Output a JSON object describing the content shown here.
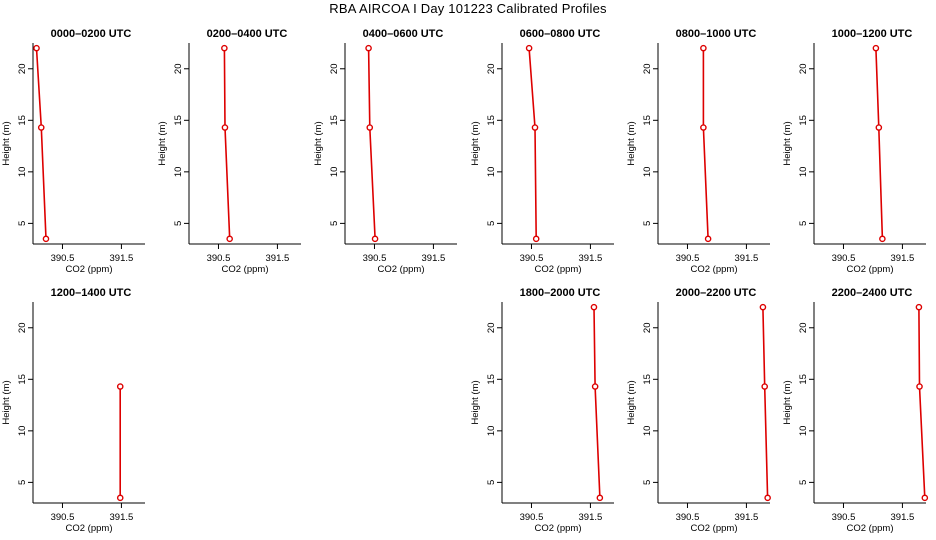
{
  "title": "RBA AIRCOA I  Day 101223  Calibrated Profiles",
  "colors": {
    "line": "#dd0000",
    "axis": "#000000",
    "background": "#ffffff"
  },
  "chart_data": [
    {
      "type": "line",
      "title": "0000–0200 UTC",
      "xlabel": "CO2 (ppm)",
      "ylabel": "Height (m)",
      "xlim": [
        390.0,
        391.9
      ],
      "ylim": [
        3,
        22.5
      ],
      "xticks": [
        "390.5",
        "391.5"
      ],
      "yticks": [
        "5",
        "10",
        "15",
        "20"
      ],
      "grid": false,
      "points": [
        {
          "x": 390.06,
          "y": 22
        },
        {
          "x": 390.14,
          "y": 14.3
        },
        {
          "x": 390.22,
          "y": 3.5
        }
      ]
    },
    {
      "type": "line",
      "title": "0200–0400 UTC",
      "xlabel": "CO2 (ppm)",
      "ylabel": "Height (m)",
      "xlim": [
        390.0,
        391.9
      ],
      "ylim": [
        3,
        22.5
      ],
      "xticks": [
        "390.5",
        "391.5"
      ],
      "yticks": [
        "5",
        "10",
        "15",
        "20"
      ],
      "grid": false,
      "points": [
        {
          "x": 390.6,
          "y": 22
        },
        {
          "x": 390.61,
          "y": 14.3
        },
        {
          "x": 390.69,
          "y": 3.5
        }
      ]
    },
    {
      "type": "line",
      "title": "0400–0600 UTC",
      "xlabel": "CO2 (ppm)",
      "ylabel": "Height (m)",
      "xlim": [
        390.0,
        391.9
      ],
      "ylim": [
        3,
        22.5
      ],
      "xticks": [
        "390.5",
        "391.5"
      ],
      "yticks": [
        "5",
        "10",
        "15",
        "20"
      ],
      "grid": false,
      "points": [
        {
          "x": 390.4,
          "y": 22
        },
        {
          "x": 390.42,
          "y": 14.3
        },
        {
          "x": 390.51,
          "y": 3.5
        }
      ]
    },
    {
      "type": "line",
      "title": "0600–0800 UTC",
      "xlabel": "CO2 (ppm)",
      "ylabel": "Height (m)",
      "xlim": [
        390.0,
        391.9
      ],
      "ylim": [
        3,
        22.5
      ],
      "xticks": [
        "390.5",
        "391.5"
      ],
      "yticks": [
        "5",
        "10",
        "15",
        "20"
      ],
      "grid": false,
      "points": [
        {
          "x": 390.46,
          "y": 22
        },
        {
          "x": 390.56,
          "y": 14.3
        },
        {
          "x": 390.58,
          "y": 3.5
        }
      ]
    },
    {
      "type": "line",
      "title": "0800–1000 UTC",
      "xlabel": "CO2 (ppm)",
      "ylabel": "Height (m)",
      "xlim": [
        390.0,
        391.9
      ],
      "ylim": [
        3,
        22.5
      ],
      "xticks": [
        "390.5",
        "391.5"
      ],
      "yticks": [
        "5",
        "10",
        "15",
        "20"
      ],
      "grid": false,
      "points": [
        {
          "x": 390.77,
          "y": 22
        },
        {
          "x": 390.77,
          "y": 14.3
        },
        {
          "x": 390.85,
          "y": 3.5
        }
      ]
    },
    {
      "type": "line",
      "title": "1000–1200 UTC",
      "xlabel": "CO2 (ppm)",
      "ylabel": "Height (m)",
      "xlim": [
        390.0,
        391.9
      ],
      "ylim": [
        3,
        22.5
      ],
      "xticks": [
        "390.5",
        "391.5"
      ],
      "yticks": [
        "5",
        "10",
        "15",
        "20"
      ],
      "grid": false,
      "points": [
        {
          "x": 391.05,
          "y": 22
        },
        {
          "x": 391.1,
          "y": 14.3
        },
        {
          "x": 391.16,
          "y": 3.5
        }
      ]
    },
    {
      "type": "line",
      "title": "1200–1400 UTC",
      "xlabel": "CO2 (ppm)",
      "ylabel": "Height (m)",
      "xlim": [
        390.0,
        391.9
      ],
      "ylim": [
        3,
        22.5
      ],
      "xticks": [
        "390.5",
        "391.5"
      ],
      "yticks": [
        "5",
        "10",
        "15",
        "20"
      ],
      "grid": false,
      "points": [
        {
          "x": 391.48,
          "y": 14.3
        },
        {
          "x": 391.48,
          "y": 3.5
        }
      ]
    },
    null,
    null,
    {
      "type": "line",
      "title": "1800–2000 UTC",
      "xlabel": "CO2 (ppm)",
      "ylabel": "Height (m)",
      "xlim": [
        390.0,
        391.9
      ],
      "ylim": [
        3,
        22.5
      ],
      "xticks": [
        "390.5",
        "391.5"
      ],
      "yticks": [
        "5",
        "10",
        "15",
        "20"
      ],
      "grid": false,
      "points": [
        {
          "x": 391.56,
          "y": 22
        },
        {
          "x": 391.58,
          "y": 14.3
        },
        {
          "x": 391.66,
          "y": 3.5
        }
      ]
    },
    {
      "type": "line",
      "title": "2000–2200 UTC",
      "xlabel": "CO2 (ppm)",
      "ylabel": "Height (m)",
      "xlim": [
        390.0,
        391.9
      ],
      "ylim": [
        3,
        22.5
      ],
      "xticks": [
        "390.5",
        "391.5"
      ],
      "yticks": [
        "5",
        "10",
        "15",
        "20"
      ],
      "grid": false,
      "points": [
        {
          "x": 391.78,
          "y": 22
        },
        {
          "x": 391.81,
          "y": 14.3
        },
        {
          "x": 391.86,
          "y": 3.5
        }
      ]
    },
    {
      "type": "line",
      "title": "2200–2400 UTC",
      "xlabel": "CO2 (ppm)",
      "ylabel": "Height (m)",
      "xlim": [
        390.0,
        391.9
      ],
      "ylim": [
        3,
        22.5
      ],
      "xticks": [
        "390.5",
        "391.5"
      ],
      "yticks": [
        "5",
        "10",
        "15",
        "20"
      ],
      "grid": false,
      "points": [
        {
          "x": 391.78,
          "y": 22
        },
        {
          "x": 391.79,
          "y": 14.3
        },
        {
          "x": 391.88,
          "y": 3.5
        }
      ]
    }
  ]
}
